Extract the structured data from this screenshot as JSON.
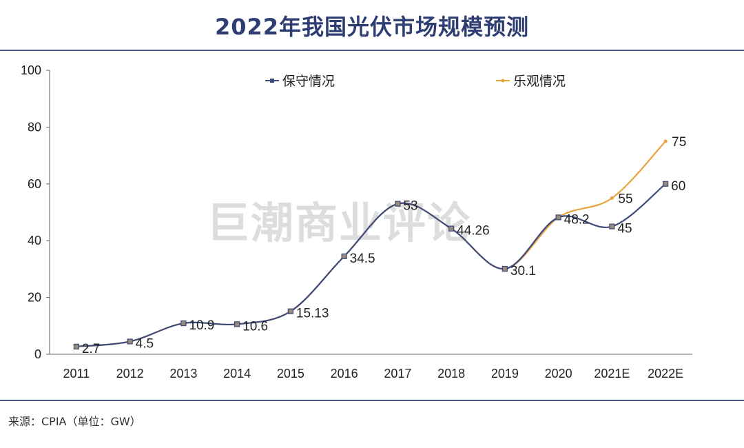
{
  "title": "2022年我国光伏市场规模预测",
  "source": "来源：CPIA（单位：GW）",
  "watermark": "巨潮商业评论",
  "colors": {
    "title": "#2e3e73",
    "conservative": "#3d4a7c",
    "optimistic": "#e8a33d",
    "rule": "#4a5683"
  },
  "chart_data": {
    "type": "line",
    "categories": [
      "2011",
      "2012",
      "2013",
      "2014",
      "2015",
      "2016",
      "2017",
      "2018",
      "2019",
      "2020",
      "2021E",
      "2022E"
    ],
    "series": [
      {
        "name": "保守情况",
        "values": [
          2.7,
          4.5,
          10.9,
          10.6,
          15.13,
          34.5,
          53,
          44.26,
          30.1,
          48.2,
          45,
          60
        ]
      },
      {
        "name": "乐观情况",
        "values": [
          2.7,
          4.5,
          10.9,
          10.6,
          15.13,
          34.5,
          53,
          44.26,
          30.1,
          48.2,
          55,
          75
        ]
      }
    ],
    "data_labels": [
      "2.7",
      "4.5",
      "10.9",
      "10.6",
      "15.13",
      "34.5",
      "53",
      "44.26",
      "30.1",
      "48.2",
      "45",
      "60"
    ],
    "extra_labels": [
      {
        "category": "2021E",
        "text": "55"
      },
      {
        "category": "2022E",
        "text": "75"
      }
    ],
    "yticks": [
      "0",
      "20",
      "40",
      "60",
      "80",
      "100"
    ],
    "ylim": [
      0,
      100
    ],
    "grid": false,
    "legend": "top-center"
  }
}
